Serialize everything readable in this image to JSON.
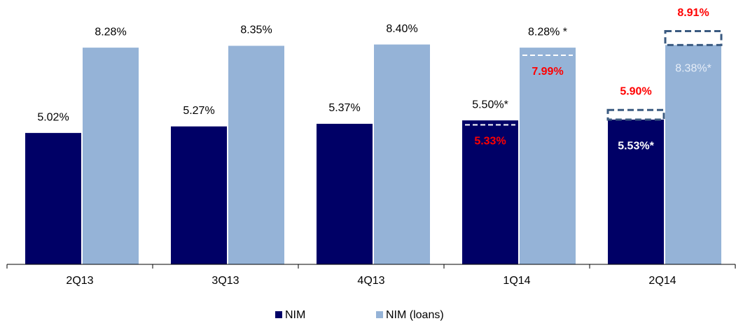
{
  "chart_data": {
    "type": "bar",
    "categories": [
      "2Q13",
      "3Q13",
      "4Q13",
      "1Q14",
      "2Q14"
    ],
    "series": [
      {
        "name": "NIM",
        "color": "#000066",
        "values": [
          5.02,
          5.27,
          5.37,
          5.5,
          5.53
        ],
        "value_labels": [
          "5.02%",
          "5.27%",
          "5.37%",
          "5.50%*",
          "5.53%*"
        ]
      },
      {
        "name": "NIM (loans)",
        "color": "#95b3d7",
        "values": [
          8.28,
          8.35,
          8.4,
          8.28,
          8.38
        ],
        "value_labels": [
          "8.28%",
          "8.35%",
          "8.40%",
          "8.28% *",
          "8.38%*"
        ]
      }
    ],
    "annotations": [
      {
        "category": "1Q14",
        "series": "NIM",
        "value": 5.33,
        "label": "5.33%",
        "kind": "line",
        "color": "#ff0000"
      },
      {
        "category": "1Q14",
        "series": "NIM (loans)",
        "value": 7.99,
        "label": "7.99%",
        "kind": "line",
        "color": "#ff0000"
      },
      {
        "category": "2Q14",
        "series": "NIM",
        "value": 5.9,
        "label": "5.90%",
        "kind": "box",
        "color": "#ff0000"
      },
      {
        "category": "2Q14",
        "series": "NIM (loans)",
        "value": 8.91,
        "label": "8.91%",
        "kind": "box",
        "color": "#ff0000"
      }
    ],
    "ylim": [
      0,
      10.1
    ],
    "legend": "bottom"
  }
}
